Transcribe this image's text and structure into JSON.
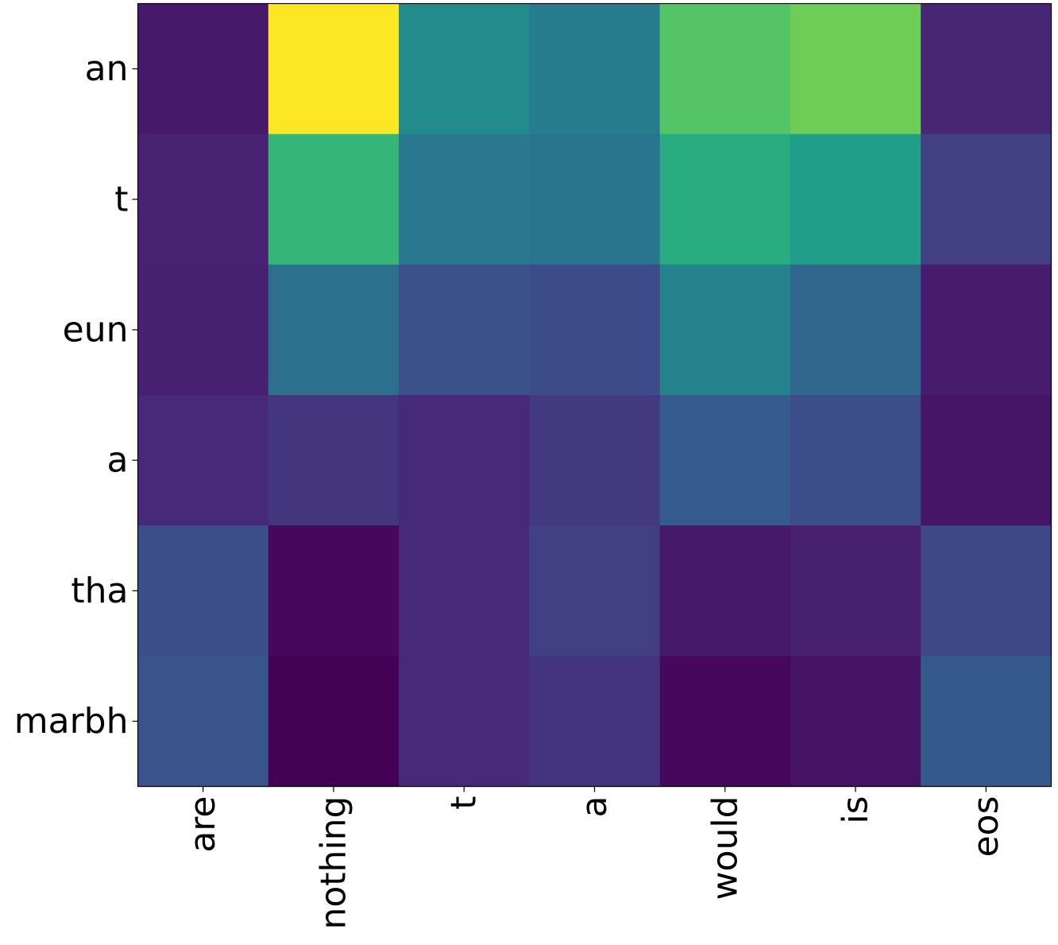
{
  "chart_data": {
    "type": "heatmap",
    "title": "",
    "xlabel": "",
    "ylabel": "",
    "x_categories": [
      "are",
      "nothing",
      "t",
      "a",
      "would",
      "is",
      "eos"
    ],
    "y_categories": [
      "an",
      "t",
      "eun",
      "a",
      "tha",
      "marbh"
    ],
    "colormap": "viridis",
    "value_range": [
      0,
      1
    ],
    "colorbar": false,
    "grid": false,
    "values": [
      [
        0.07,
        1.0,
        0.48,
        0.42,
        0.73,
        0.78,
        0.11
      ],
      [
        0.1,
        0.66,
        0.4,
        0.39,
        0.62,
        0.56,
        0.19
      ],
      [
        0.09,
        0.37,
        0.25,
        0.23,
        0.44,
        0.33,
        0.08
      ],
      [
        0.12,
        0.16,
        0.12,
        0.17,
        0.29,
        0.24,
        0.06
      ],
      [
        0.24,
        0.02,
        0.12,
        0.19,
        0.07,
        0.09,
        0.22
      ],
      [
        0.26,
        0.0,
        0.12,
        0.15,
        0.02,
        0.05,
        0.28
      ]
    ]
  }
}
